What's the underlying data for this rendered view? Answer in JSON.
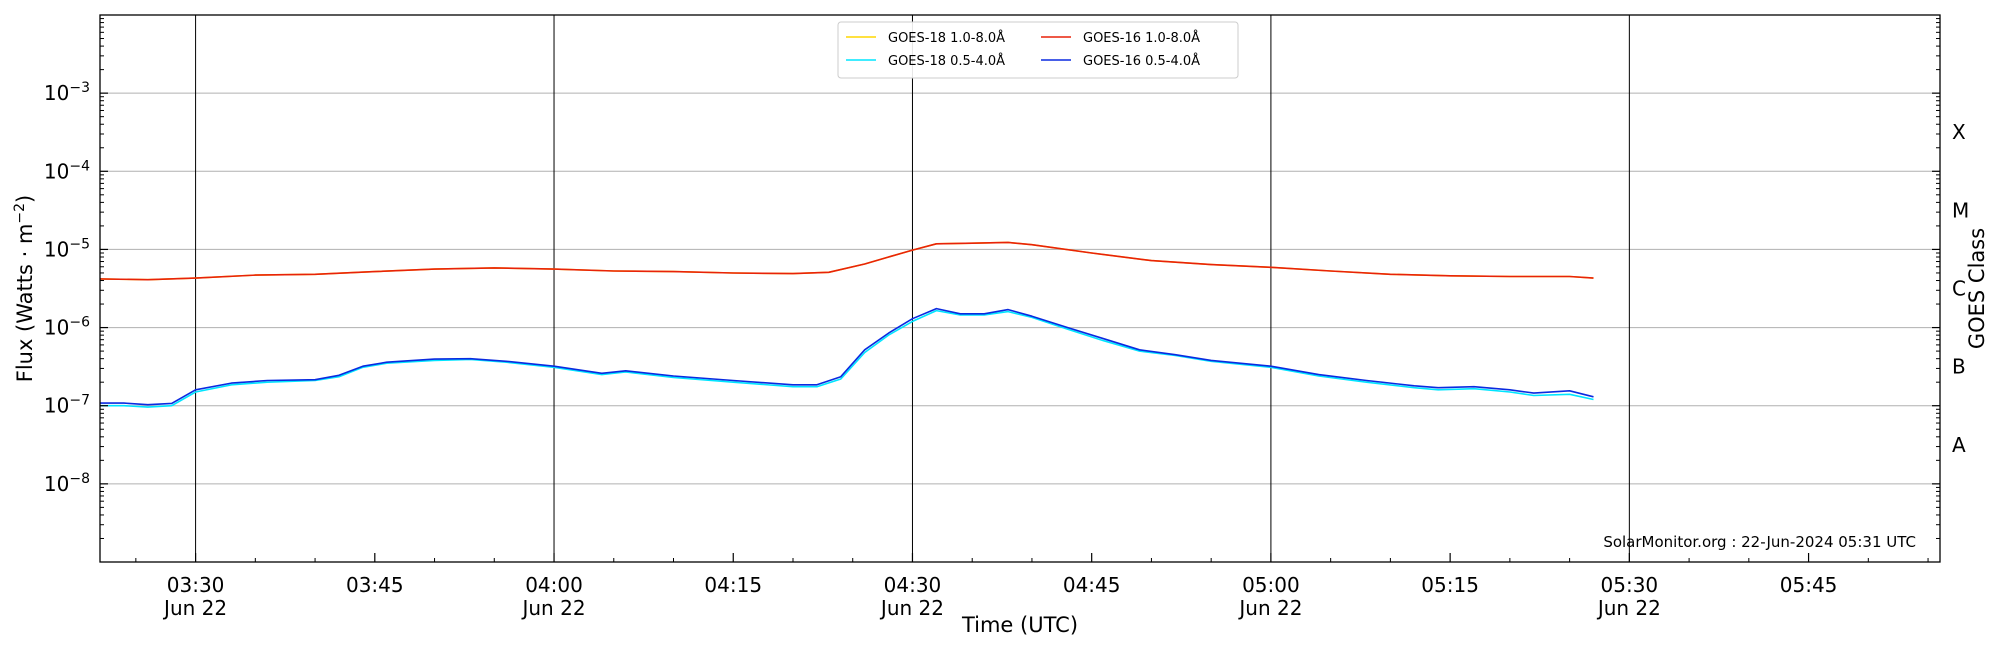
{
  "chart_data": {
    "type": "line",
    "title": "",
    "xlabel": "Time (UTC)",
    "ylabel": "Flux (Watts · m",
    "ylabel_sup": "−2",
    "ylabel_close": ")",
    "y2label": "GOES Class",
    "yscale": "log",
    "ylim": [
      1e-09,
      0.01
    ],
    "xlim": [
      "03:22",
      "05:56"
    ],
    "grid": {
      "horizontal": true,
      "vertical_at_half_hours": true
    },
    "legend_position": "top-center",
    "credit": "SolarMonitor.org : 22-Jun-2024 05:31 UTC",
    "x_ticks": [
      {
        "time": "03:30",
        "label": "03:30",
        "date": "Jun 22"
      },
      {
        "time": "03:45",
        "label": "03:45",
        "date": ""
      },
      {
        "time": "04:00",
        "label": "04:00",
        "date": "Jun 22"
      },
      {
        "time": "04:15",
        "label": "04:15",
        "date": ""
      },
      {
        "time": "04:30",
        "label": "04:30",
        "date": "Jun 22"
      },
      {
        "time": "04:45",
        "label": "04:45",
        "date": ""
      },
      {
        "time": "05:00",
        "label": "05:00",
        "date": "Jun 22"
      },
      {
        "time": "05:15",
        "label": "05:15",
        "date": ""
      },
      {
        "time": "05:30",
        "label": "05:30",
        "date": "Jun 22"
      },
      {
        "time": "05:45",
        "label": "05:45",
        "date": ""
      }
    ],
    "y_ticks": [
      {
        "exp": -8,
        "base": "10",
        "sup": "−8"
      },
      {
        "exp": -7,
        "base": "10",
        "sup": "−7"
      },
      {
        "exp": -6,
        "base": "10",
        "sup": "−6"
      },
      {
        "exp": -5,
        "base": "10",
        "sup": "−5"
      },
      {
        "exp": -4,
        "base": "10",
        "sup": "−4"
      },
      {
        "exp": -3,
        "base": "10",
        "sup": "−3"
      }
    ],
    "goes_classes": [
      {
        "label": "A",
        "exp": -7.5
      },
      {
        "label": "B",
        "exp": -6.5
      },
      {
        "label": "C",
        "exp": -5.5
      },
      {
        "label": "M",
        "exp": -4.5
      },
      {
        "label": "X",
        "exp": -3.5
      }
    ],
    "series": [
      {
        "name": "GOES-18 1.0-8.0Å",
        "color": "#FFD700",
        "x": [
          "03:22",
          "03:26",
          "03:30",
          "03:35",
          "03:40",
          "03:45",
          "03:50",
          "03:55",
          "04:00",
          "04:05",
          "04:10",
          "04:15",
          "04:20",
          "04:23",
          "04:26",
          "04:28",
          "04:30",
          "04:32",
          "04:35",
          "04:38",
          "04:40",
          "04:45",
          "04:50",
          "04:55",
          "05:00",
          "05:05",
          "05:10",
          "05:15",
          "05:20",
          "05:25",
          "05:27"
        ],
        "values": [
          4.2e-06,
          4.1e-06,
          4.3e-06,
          4.7e-06,
          4.8e-06,
          5.2e-06,
          5.6e-06,
          5.8e-06,
          5.6e-06,
          5.3e-06,
          5.2e-06,
          5e-06,
          4.9e-06,
          5.1e-06,
          6.5e-06,
          8e-06,
          9.8e-06,
          1.18e-05,
          1.2e-05,
          1.23e-05,
          1.15e-05,
          9e-06,
          7.2e-06,
          6.4e-06,
          5.9e-06,
          5.3e-06,
          4.8e-06,
          4.6e-06,
          4.5e-06,
          4.5e-06,
          4.3e-06
        ]
      },
      {
        "name": "GOES-18 0.5-4.0Å",
        "color": "#00E5FF",
        "x": [
          "03:22",
          "03:24",
          "03:26",
          "03:28",
          "03:30",
          "03:33",
          "03:36",
          "03:40",
          "03:42",
          "03:44",
          "03:46",
          "03:50",
          "03:53",
          "03:56",
          "04:00",
          "04:04",
          "04:06",
          "04:10",
          "04:15",
          "04:20",
          "04:22",
          "04:24",
          "04:26",
          "04:28",
          "04:30",
          "04:32",
          "04:34",
          "04:36",
          "04:38",
          "04:40",
          "04:43",
          "04:46",
          "04:49",
          "04:52",
          "04:55",
          "05:00",
          "05:04",
          "05:08",
          "05:12",
          "05:14",
          "05:17",
          "05:20",
          "05:22",
          "05:25",
          "05:27"
        ],
        "values": [
          1e-07,
          1e-07,
          9.6e-08,
          1e-07,
          1.5e-07,
          1.85e-07,
          2e-07,
          2.1e-07,
          2.35e-07,
          3.1e-07,
          3.5e-07,
          3.8e-07,
          3.9e-07,
          3.6e-07,
          3.1e-07,
          2.5e-07,
          2.7e-07,
          2.3e-07,
          2e-07,
          1.75e-07,
          1.75e-07,
          2.2e-07,
          4.8e-07,
          8e-07,
          1.2e-06,
          1.65e-06,
          1.45e-06,
          1.45e-06,
          1.6e-06,
          1.35e-06,
          9.5e-07,
          6.8e-07,
          5e-07,
          4.4e-07,
          3.7e-07,
          3.1e-07,
          2.4e-07,
          2e-07,
          1.7e-07,
          1.6e-07,
          1.65e-07,
          1.5e-07,
          1.35e-07,
          1.4e-07,
          1.2e-07
        ]
      },
      {
        "name": "GOES-16 1.0-8.0Å",
        "color": "#E8220A",
        "x": [
          "03:22",
          "03:26",
          "03:30",
          "03:35",
          "03:40",
          "03:45",
          "03:50",
          "03:55",
          "04:00",
          "04:05",
          "04:10",
          "04:15",
          "04:20",
          "04:23",
          "04:26",
          "04:28",
          "04:30",
          "04:32",
          "04:35",
          "04:38",
          "04:40",
          "04:45",
          "04:50",
          "04:55",
          "05:00",
          "05:05",
          "05:10",
          "05:15",
          "05:20",
          "05:25",
          "05:27"
        ],
        "values": [
          4.2e-06,
          4.1e-06,
          4.3e-06,
          4.7e-06,
          4.8e-06,
          5.2e-06,
          5.6e-06,
          5.8e-06,
          5.6e-06,
          5.3e-06,
          5.2e-06,
          5e-06,
          4.9e-06,
          5.1e-06,
          6.5e-06,
          8e-06,
          9.8e-06,
          1.18e-05,
          1.2e-05,
          1.23e-05,
          1.15e-05,
          9e-06,
          7.2e-06,
          6.4e-06,
          5.9e-06,
          5.3e-06,
          4.8e-06,
          4.6e-06,
          4.5e-06,
          4.5e-06,
          4.3e-06
        ]
      },
      {
        "name": "GOES-16 0.5-4.0Å",
        "color": "#0A2AE0",
        "x": [
          "03:22",
          "03:24",
          "03:26",
          "03:28",
          "03:30",
          "03:33",
          "03:36",
          "03:40",
          "03:42",
          "03:44",
          "03:46",
          "03:50",
          "03:53",
          "03:56",
          "04:00",
          "04:04",
          "04:06",
          "04:10",
          "04:15",
          "04:20",
          "04:22",
          "04:24",
          "04:26",
          "04:28",
          "04:30",
          "04:32",
          "04:34",
          "04:36",
          "04:38",
          "04:40",
          "04:43",
          "04:46",
          "04:49",
          "04:52",
          "04:55",
          "05:00",
          "05:04",
          "05:08",
          "05:12",
          "05:14",
          "05:17",
          "05:20",
          "05:22",
          "05:25",
          "05:27"
        ],
        "values": [
          1.08e-07,
          1.08e-07,
          1.03e-07,
          1.07e-07,
          1.6e-07,
          1.95e-07,
          2.1e-07,
          2.15e-07,
          2.45e-07,
          3.2e-07,
          3.6e-07,
          3.95e-07,
          4e-07,
          3.7e-07,
          3.2e-07,
          2.6e-07,
          2.8e-07,
          2.4e-07,
          2.1e-07,
          1.85e-07,
          1.85e-07,
          2.35e-07,
          5.2e-07,
          8.5e-07,
          1.3e-06,
          1.75e-06,
          1.5e-06,
          1.5e-06,
          1.7e-06,
          1.4e-06,
          1e-06,
          7.2e-07,
          5.2e-07,
          4.5e-07,
          3.8e-07,
          3.2e-07,
          2.5e-07,
          2.1e-07,
          1.8e-07,
          1.7e-07,
          1.75e-07,
          1.6e-07,
          1.45e-07,
          1.55e-07,
          1.3e-07
        ]
      }
    ],
    "legend_order": [
      0,
      1,
      2,
      3
    ]
  }
}
